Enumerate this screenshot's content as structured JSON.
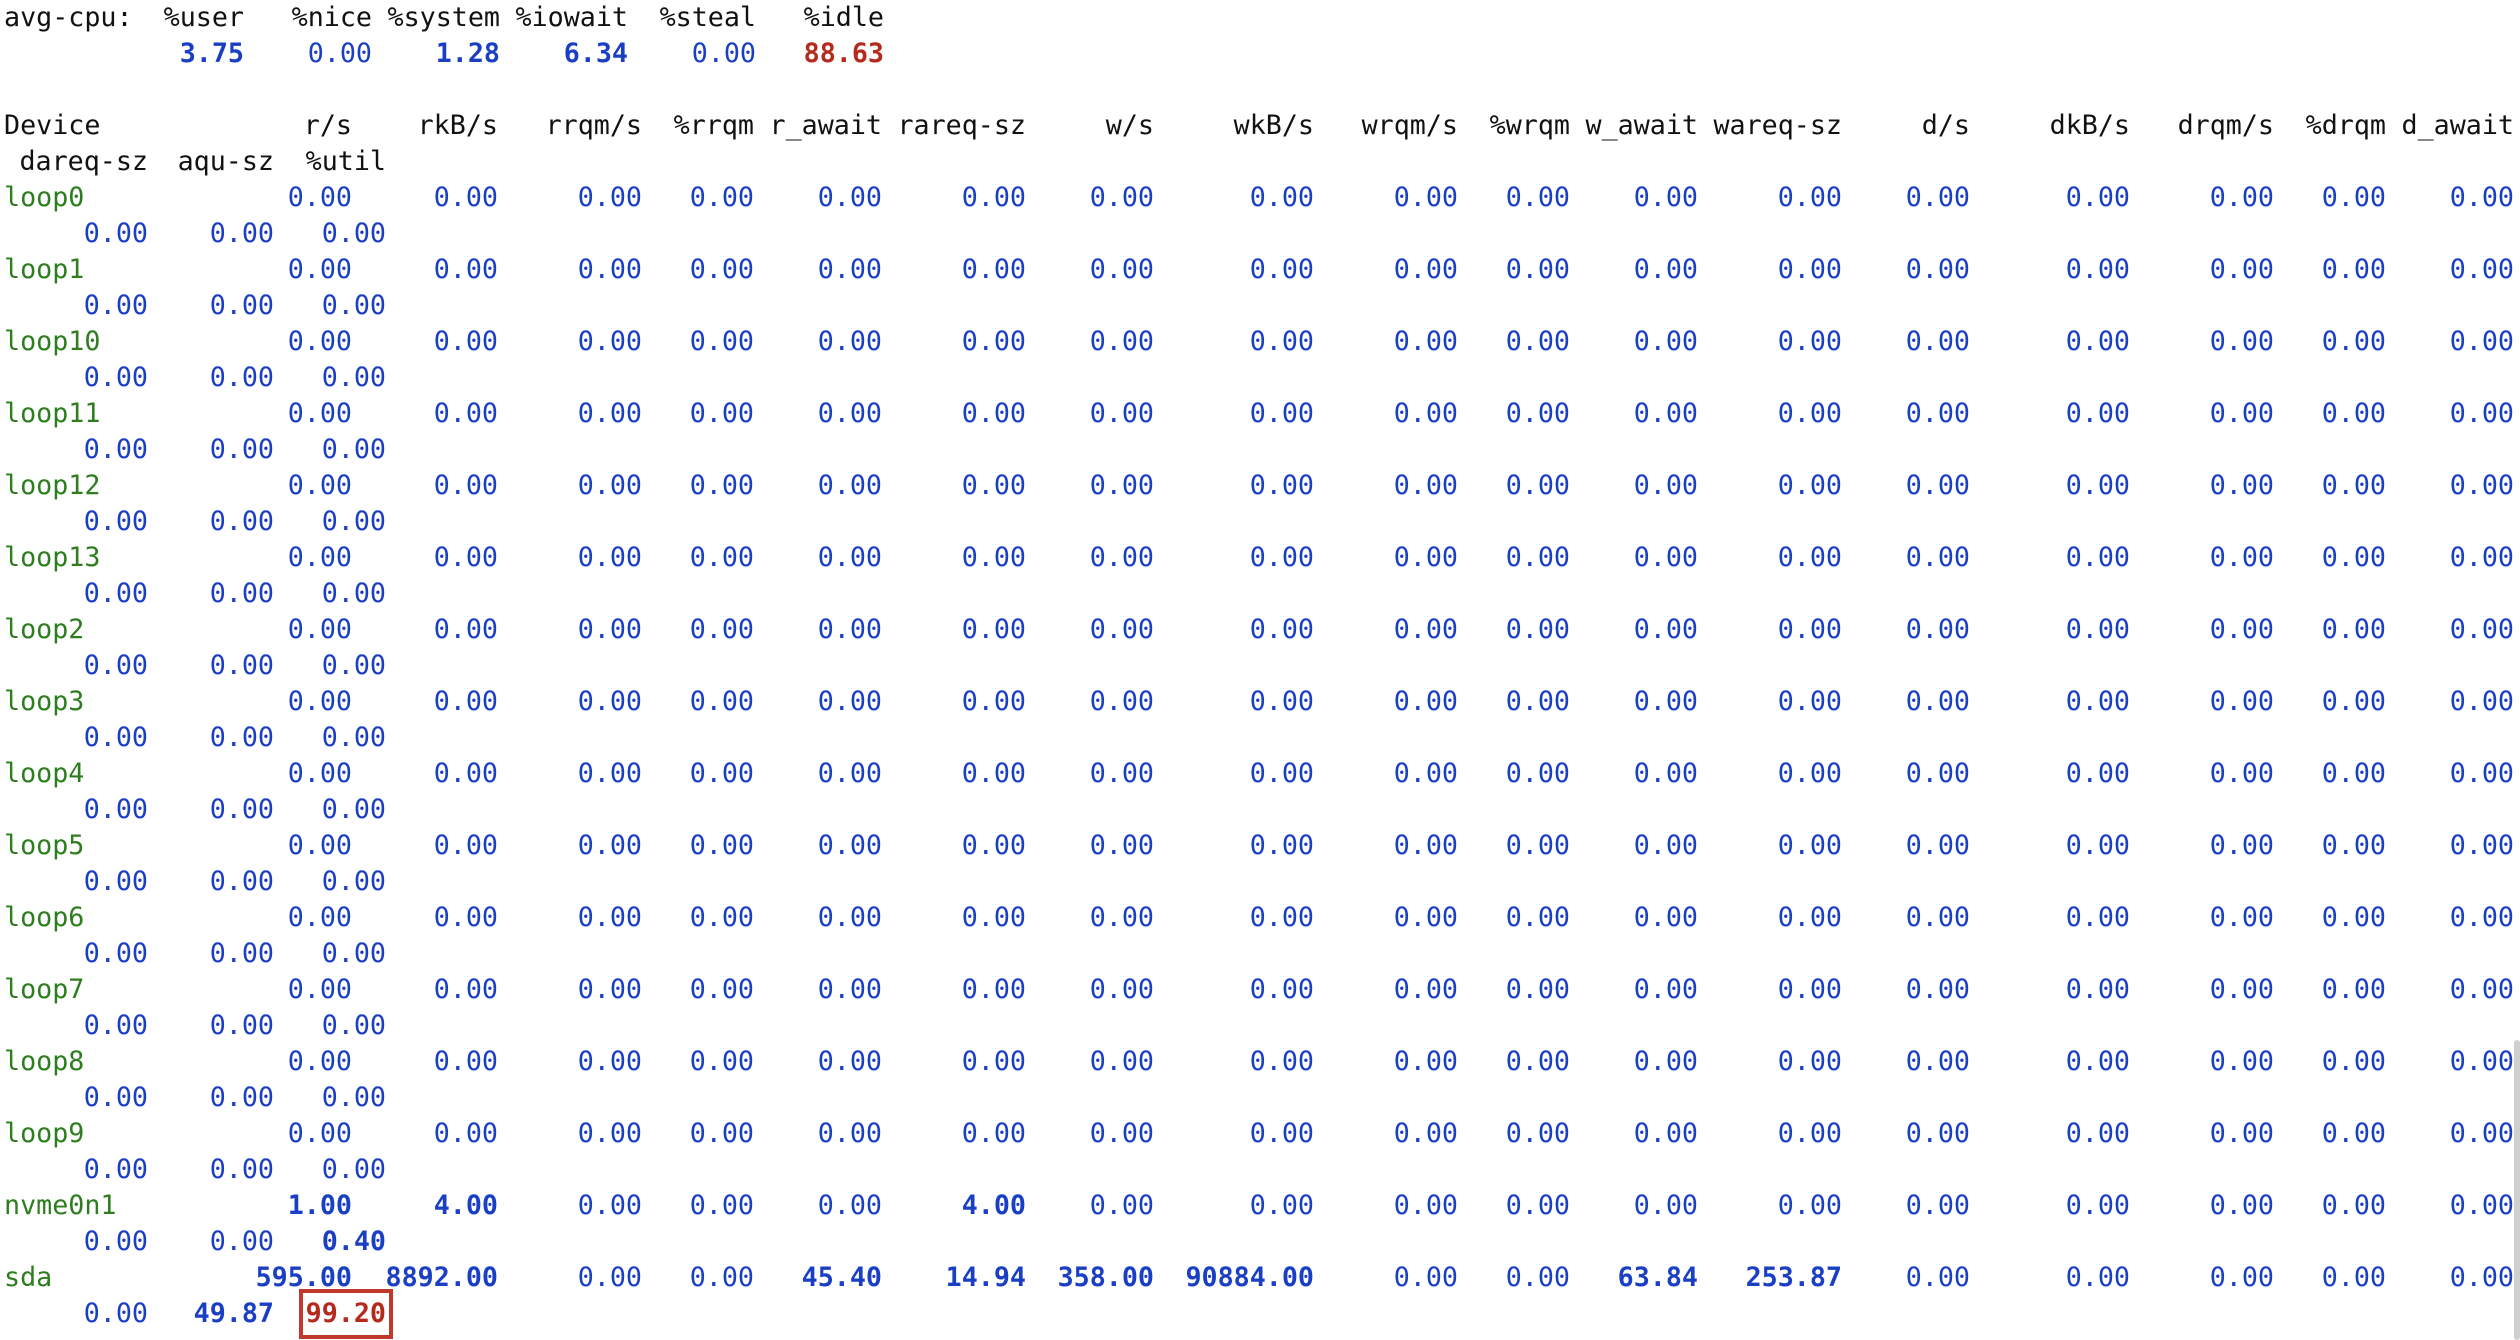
{
  "cpu": {
    "label": "avg-cpu:",
    "columns": [
      "%user",
      "%nice",
      "%system",
      "%iowait",
      "%steal",
      "%idle"
    ],
    "values": [
      "3.75",
      "0.00",
      "1.28",
      "6.34",
      "0.00",
      "88.63"
    ]
  },
  "device_header": {
    "line1": [
      "Device",
      "r/s",
      "rkB/s",
      "rrqm/s",
      "%rrqm",
      "r_await",
      "rareq-sz",
      "w/s",
      "wkB/s",
      "wrqm/s",
      "%wrqm",
      "w_await",
      "wareq-sz",
      "d/s",
      "dkB/s",
      "drqm/s",
      "%drqm",
      "d_await"
    ],
    "line2": [
      "dareq-sz",
      "aqu-sz",
      "%util"
    ]
  },
  "devices": [
    {
      "name": "loop0",
      "line1": [
        "0.00",
        "0.00",
        "0.00",
        "0.00",
        "0.00",
        "0.00",
        "0.00",
        "0.00",
        "0.00",
        "0.00",
        "0.00",
        "0.00",
        "0.00",
        "0.00",
        "0.00",
        "0.00",
        "0.00"
      ],
      "line2": [
        "0.00",
        "0.00",
        "0.00"
      ]
    },
    {
      "name": "loop1",
      "line1": [
        "0.00",
        "0.00",
        "0.00",
        "0.00",
        "0.00",
        "0.00",
        "0.00",
        "0.00",
        "0.00",
        "0.00",
        "0.00",
        "0.00",
        "0.00",
        "0.00",
        "0.00",
        "0.00",
        "0.00"
      ],
      "line2": [
        "0.00",
        "0.00",
        "0.00"
      ]
    },
    {
      "name": "loop10",
      "line1": [
        "0.00",
        "0.00",
        "0.00",
        "0.00",
        "0.00",
        "0.00",
        "0.00",
        "0.00",
        "0.00",
        "0.00",
        "0.00",
        "0.00",
        "0.00",
        "0.00",
        "0.00",
        "0.00",
        "0.00"
      ],
      "line2": [
        "0.00",
        "0.00",
        "0.00"
      ]
    },
    {
      "name": "loop11",
      "line1": [
        "0.00",
        "0.00",
        "0.00",
        "0.00",
        "0.00",
        "0.00",
        "0.00",
        "0.00",
        "0.00",
        "0.00",
        "0.00",
        "0.00",
        "0.00",
        "0.00",
        "0.00",
        "0.00",
        "0.00"
      ],
      "line2": [
        "0.00",
        "0.00",
        "0.00"
      ]
    },
    {
      "name": "loop12",
      "line1": [
        "0.00",
        "0.00",
        "0.00",
        "0.00",
        "0.00",
        "0.00",
        "0.00",
        "0.00",
        "0.00",
        "0.00",
        "0.00",
        "0.00",
        "0.00",
        "0.00",
        "0.00",
        "0.00",
        "0.00"
      ],
      "line2": [
        "0.00",
        "0.00",
        "0.00"
      ]
    },
    {
      "name": "loop13",
      "line1": [
        "0.00",
        "0.00",
        "0.00",
        "0.00",
        "0.00",
        "0.00",
        "0.00",
        "0.00",
        "0.00",
        "0.00",
        "0.00",
        "0.00",
        "0.00",
        "0.00",
        "0.00",
        "0.00",
        "0.00"
      ],
      "line2": [
        "0.00",
        "0.00",
        "0.00"
      ]
    },
    {
      "name": "loop2",
      "line1": [
        "0.00",
        "0.00",
        "0.00",
        "0.00",
        "0.00",
        "0.00",
        "0.00",
        "0.00",
        "0.00",
        "0.00",
        "0.00",
        "0.00",
        "0.00",
        "0.00",
        "0.00",
        "0.00",
        "0.00"
      ],
      "line2": [
        "0.00",
        "0.00",
        "0.00"
      ]
    },
    {
      "name": "loop3",
      "line1": [
        "0.00",
        "0.00",
        "0.00",
        "0.00",
        "0.00",
        "0.00",
        "0.00",
        "0.00",
        "0.00",
        "0.00",
        "0.00",
        "0.00",
        "0.00",
        "0.00",
        "0.00",
        "0.00",
        "0.00"
      ],
      "line2": [
        "0.00",
        "0.00",
        "0.00"
      ]
    },
    {
      "name": "loop4",
      "line1": [
        "0.00",
        "0.00",
        "0.00",
        "0.00",
        "0.00",
        "0.00",
        "0.00",
        "0.00",
        "0.00",
        "0.00",
        "0.00",
        "0.00",
        "0.00",
        "0.00",
        "0.00",
        "0.00",
        "0.00"
      ],
      "line2": [
        "0.00",
        "0.00",
        "0.00"
      ]
    },
    {
      "name": "loop5",
      "line1": [
        "0.00",
        "0.00",
        "0.00",
        "0.00",
        "0.00",
        "0.00",
        "0.00",
        "0.00",
        "0.00",
        "0.00",
        "0.00",
        "0.00",
        "0.00",
        "0.00",
        "0.00",
        "0.00",
        "0.00"
      ],
      "line2": [
        "0.00",
        "0.00",
        "0.00"
      ]
    },
    {
      "name": "loop6",
      "line1": [
        "0.00",
        "0.00",
        "0.00",
        "0.00",
        "0.00",
        "0.00",
        "0.00",
        "0.00",
        "0.00",
        "0.00",
        "0.00",
        "0.00",
        "0.00",
        "0.00",
        "0.00",
        "0.00",
        "0.00"
      ],
      "line2": [
        "0.00",
        "0.00",
        "0.00"
      ]
    },
    {
      "name": "loop7",
      "line1": [
        "0.00",
        "0.00",
        "0.00",
        "0.00",
        "0.00",
        "0.00",
        "0.00",
        "0.00",
        "0.00",
        "0.00",
        "0.00",
        "0.00",
        "0.00",
        "0.00",
        "0.00",
        "0.00",
        "0.00"
      ],
      "line2": [
        "0.00",
        "0.00",
        "0.00"
      ]
    },
    {
      "name": "loop8",
      "line1": [
        "0.00",
        "0.00",
        "0.00",
        "0.00",
        "0.00",
        "0.00",
        "0.00",
        "0.00",
        "0.00",
        "0.00",
        "0.00",
        "0.00",
        "0.00",
        "0.00",
        "0.00",
        "0.00",
        "0.00"
      ],
      "line2": [
        "0.00",
        "0.00",
        "0.00"
      ]
    },
    {
      "name": "loop9",
      "line1": [
        "0.00",
        "0.00",
        "0.00",
        "0.00",
        "0.00",
        "0.00",
        "0.00",
        "0.00",
        "0.00",
        "0.00",
        "0.00",
        "0.00",
        "0.00",
        "0.00",
        "0.00",
        "0.00",
        "0.00"
      ],
      "line2": [
        "0.00",
        "0.00",
        "0.00"
      ]
    },
    {
      "name": "nvme0n1",
      "line1": [
        "1.00",
        "4.00",
        "0.00",
        "0.00",
        "0.00",
        "4.00",
        "0.00",
        "0.00",
        "0.00",
        "0.00",
        "0.00",
        "0.00",
        "0.00",
        "0.00",
        "0.00",
        "0.00",
        "0.00"
      ],
      "line2": [
        "0.00",
        "0.00",
        "0.40"
      ]
    },
    {
      "name": "sda",
      "line1": [
        "595.00",
        "8892.00",
        "0.00",
        "0.00",
        "45.40",
        "14.94",
        "358.00",
        "90884.00",
        "0.00",
        "0.00",
        "63.84",
        "253.87",
        "0.00",
        "0.00",
        "0.00",
        "0.00",
        "0.00"
      ],
      "line2": [
        "0.00",
        "49.87",
        "99.20"
      ]
    }
  ],
  "colors": {
    "number": "#1a3fc4",
    "device": "#2e7d1f",
    "highlight_red": "#b52a1c",
    "annotation_box": "#c0392b"
  }
}
